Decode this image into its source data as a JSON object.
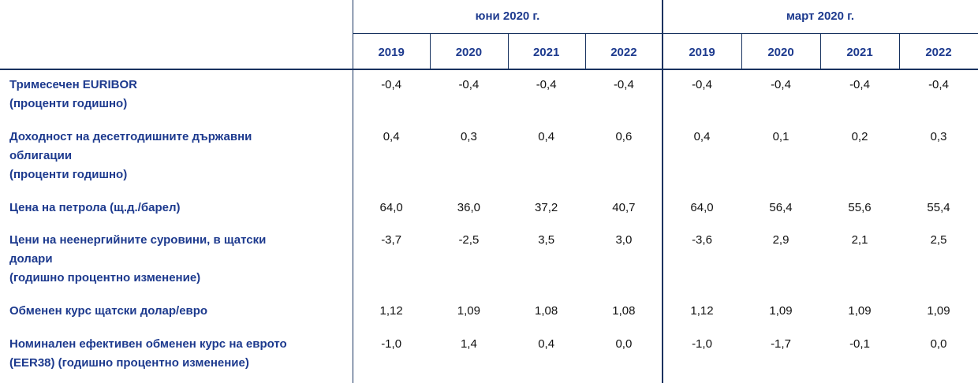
{
  "table": {
    "groups": [
      "юни 2020 г.",
      "март 2020 г."
    ],
    "years": [
      [
        "2019",
        "2020",
        "2021",
        "2022"
      ],
      [
        "2019",
        "2020",
        "2021",
        "2022"
      ]
    ],
    "rows": [
      {
        "label": [
          "Тримесечен EURIBOR",
          "(проценти годишно)"
        ],
        "values": [
          "-0,4",
          "-0,4",
          "-0,4",
          "-0,4",
          "-0,4",
          "-0,4",
          "-0,4",
          "-0,4"
        ]
      },
      {
        "label": [
          "Доходност на десетгодишните държавни",
          "облигации",
          "(проценти годишно)"
        ],
        "values": [
          "0,4",
          "0,3",
          "0,4",
          "0,6",
          "0,4",
          "0,1",
          "0,2",
          "0,3"
        ]
      },
      {
        "label": [
          "Цена на петрола (щ.д./барел)"
        ],
        "values": [
          "64,0",
          "36,0",
          "37,2",
          "40,7",
          "64,0",
          "56,4",
          "55,6",
          "55,4"
        ]
      },
      {
        "label": [
          "Цени на неенергийните суровини, в щатски",
          "долари",
          "(годишно процентно изменение)"
        ],
        "values": [
          "-3,7",
          "-2,5",
          "3,5",
          "3,0",
          "-3,6",
          "2,9",
          "2,1",
          "2,5"
        ]
      },
      {
        "label": [
          "Обменен курс щатски долар/евро"
        ],
        "values": [
          "1,12",
          "1,09",
          "1,08",
          "1,08",
          "1,12",
          "1,09",
          "1,09",
          "1,09"
        ]
      },
      {
        "label": [
          "Номинален ефективен обменен курс на еврото",
          "(EER38) (годишно процентно изменение)"
        ],
        "values": [
          "-1,0",
          "1,4",
          "0,4",
          "0,0",
          "-1,0",
          "-1,7",
          "-0,1",
          "0,0"
        ]
      }
    ]
  }
}
